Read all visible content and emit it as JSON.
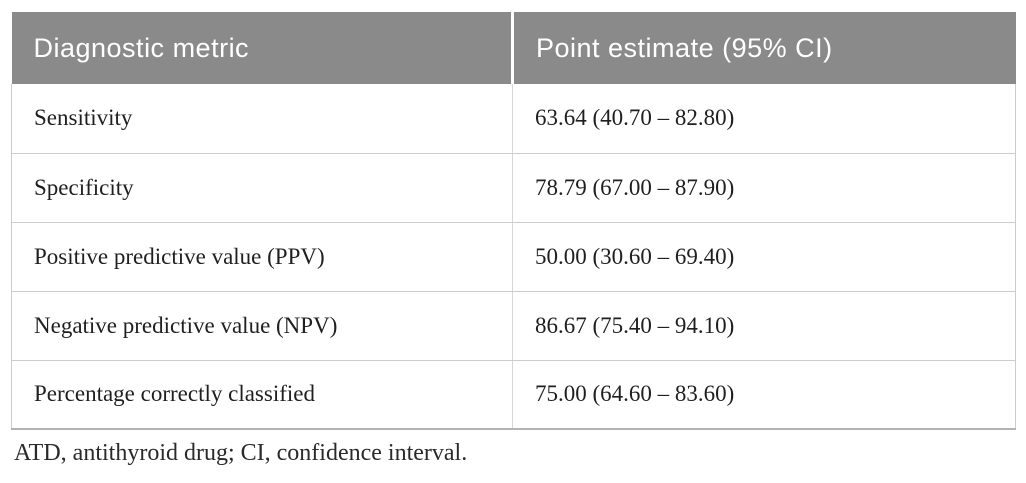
{
  "table": {
    "columns": [
      {
        "label": "Diagnostic metric"
      },
      {
        "label": "Point estimate (95% CI)"
      }
    ],
    "rows": [
      {
        "metric": "Sensitivity",
        "value": "63.64 (40.70 – 82.80)"
      },
      {
        "metric": "Specificity",
        "value": "78.79 (67.00 – 87.90)"
      },
      {
        "metric": "Positive predictive value (PPV)",
        "value": "50.00 (30.60 – 69.40)"
      },
      {
        "metric": "Negative predictive value (NPV)",
        "value": "86.67 (75.40 – 94.10)"
      },
      {
        "metric": "Percentage correctly classified",
        "value": "75.00 (64.60 – 83.60)"
      }
    ],
    "footnote": "ATD, antithyroid drug; CI, confidence interval."
  },
  "colors": {
    "header_bg": "#8a8a8a",
    "header_text": "#ffffff",
    "body_text": "#1f1f1f",
    "rule": "#cccccc",
    "bottom_rule": "#b3b3b3"
  }
}
